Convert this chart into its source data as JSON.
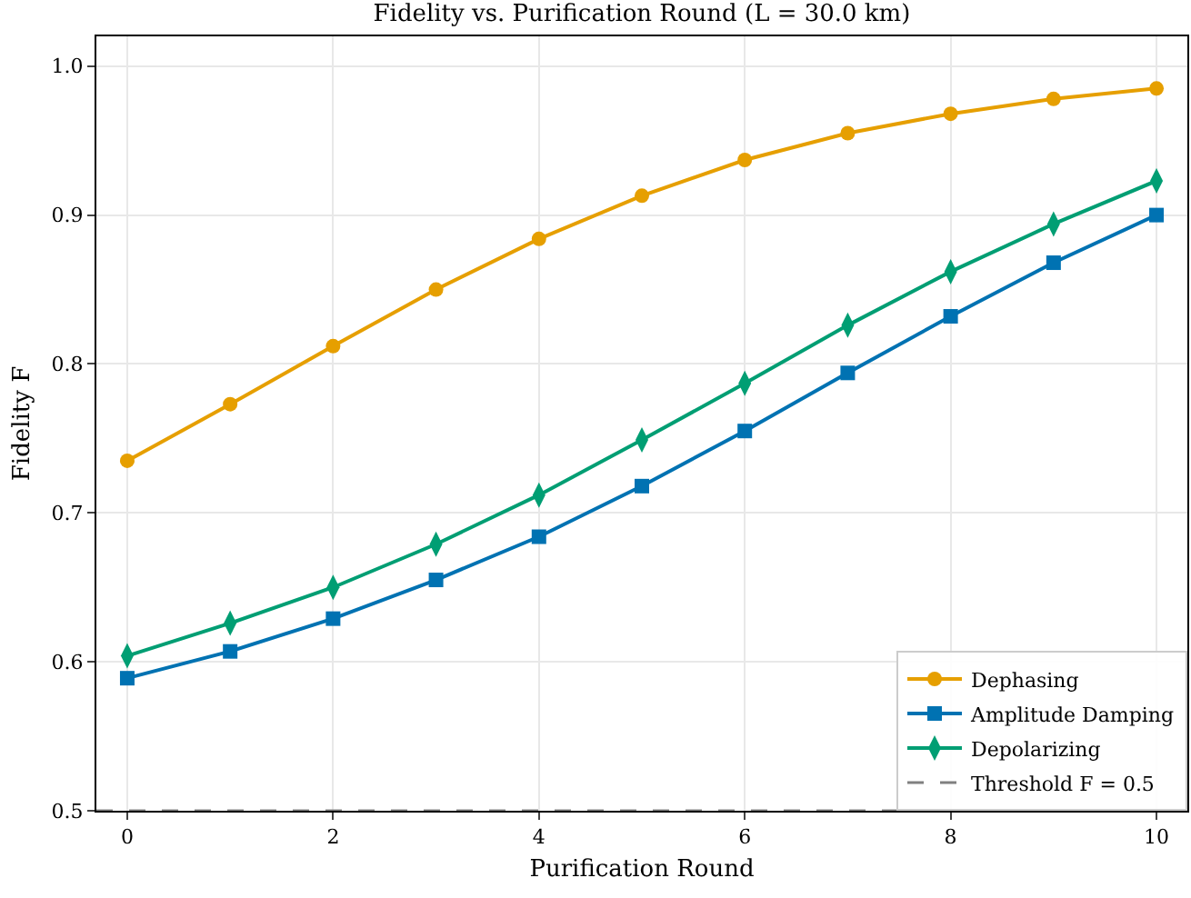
{
  "chart_data": {
    "type": "line",
    "title": "Fidelity vs. Purification Round (L = 30.0 km)",
    "xlabel": "Purification Round",
    "ylabel": "Fidelity F",
    "x": [
      0,
      1,
      2,
      3,
      4,
      5,
      6,
      7,
      8,
      9,
      10
    ],
    "series": [
      {
        "name": "Dephasing",
        "color": "#e69f00",
        "marker": "circle",
        "values": [
          0.735,
          0.773,
          0.812,
          0.85,
          0.884,
          0.913,
          0.937,
          0.955,
          0.968,
          0.978,
          0.985
        ]
      },
      {
        "name": "Amplitude Damping",
        "color": "#0072b2",
        "marker": "square",
        "values": [
          0.589,
          0.607,
          0.629,
          0.655,
          0.684,
          0.718,
          0.755,
          0.794,
          0.832,
          0.868,
          0.9
        ]
      },
      {
        "name": "Depolarizing",
        "color": "#009e73",
        "marker": "diamond",
        "values": [
          0.604,
          0.626,
          0.65,
          0.679,
          0.712,
          0.749,
          0.787,
          0.826,
          0.862,
          0.894,
          0.923
        ]
      }
    ],
    "ref_lines": [
      {
        "axis": "y",
        "value": 0.5,
        "label": "Threshold F = 0.5",
        "color": "#808080",
        "line_style": "dashed"
      }
    ],
    "xlim": [
      -0.3,
      10.3
    ],
    "xticks": [
      0,
      2,
      4,
      6,
      8,
      10
    ],
    "ylim": [
      0.5,
      1.02
    ],
    "yticks": [
      0.5,
      0.6,
      0.7,
      0.8,
      0.9,
      {
        "value": 1,
        "label": "1.0"
      }
    ],
    "grid": true,
    "legend": "bottom right",
    "line_style": "solid"
  }
}
